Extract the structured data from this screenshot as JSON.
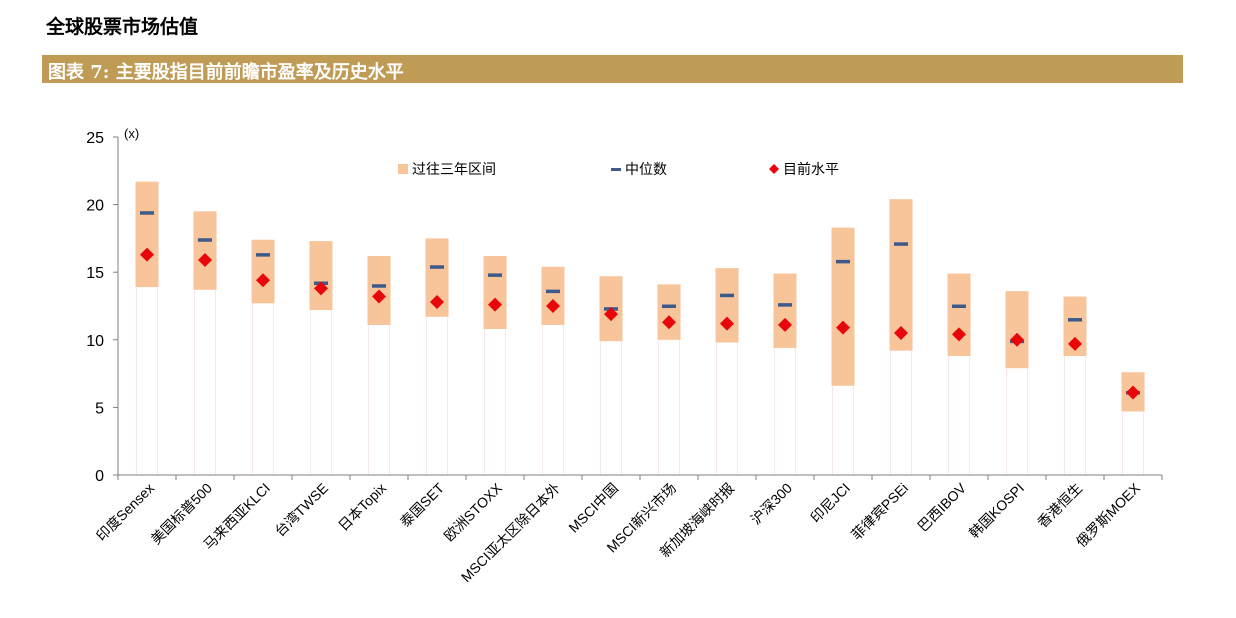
{
  "page": {
    "heading": "全球股票市场估值",
    "figure_title": "图表 7: 主要股指目前前瞻市盈率及历史水平"
  },
  "colors": {
    "band": "#f8c49a",
    "median": "#3c5a8a",
    "current": "#e8060a",
    "header_bar": "#bf9b56"
  },
  "chart_data": {
    "type": "bar",
    "title": "主要股指目前前瞻市盈率及历史水平",
    "unit_label": "(x)",
    "ylim": [
      0,
      25
    ],
    "yticks": [
      0,
      5,
      10,
      15,
      20,
      25
    ],
    "grid": false,
    "legend_position": "top-center",
    "legend": {
      "band": "过往三年区间",
      "median": "中位数",
      "current": "目前水平"
    },
    "categories": [
      "印度Sensex",
      "美国标普500",
      "马来西亚KLCI",
      "台湾TWSE",
      "日本Topix",
      "泰国SET",
      "欧洲STOXX",
      "MSCI亚太区除日本外",
      "MSCI中国",
      "MSCI新兴市场",
      "新加坡海峡时报",
      "沪深300",
      "印尼JCI",
      "菲律宾PSEi",
      "巴西IBOV",
      "韩国KOSPI",
      "香港恒生",
      "俄罗斯MOEX"
    ],
    "series": [
      {
        "name": "过往三年区间-低",
        "values": [
          13.9,
          13.7,
          12.7,
          12.2,
          11.1,
          11.7,
          10.8,
          11.1,
          9.9,
          10.0,
          9.8,
          9.4,
          6.6,
          9.2,
          8.8,
          7.9,
          8.8,
          4.7
        ]
      },
      {
        "name": "过往三年区间-高",
        "values": [
          21.7,
          19.5,
          17.4,
          17.3,
          16.2,
          17.5,
          16.2,
          15.4,
          14.7,
          14.1,
          15.3,
          14.9,
          18.3,
          20.4,
          14.9,
          13.6,
          13.2,
          7.6
        ]
      },
      {
        "name": "中位数",
        "values": [
          19.4,
          17.4,
          16.3,
          14.2,
          14.0,
          15.4,
          14.8,
          13.6,
          12.3,
          12.5,
          13.3,
          12.6,
          15.8,
          17.1,
          12.5,
          9.9,
          11.5,
          6.1
        ]
      },
      {
        "name": "目前水平",
        "values": [
          16.3,
          15.9,
          14.4,
          13.8,
          13.2,
          12.8,
          12.6,
          12.5,
          11.9,
          11.3,
          11.2,
          11.1,
          10.9,
          10.5,
          10.4,
          10.0,
          9.7,
          6.1
        ]
      }
    ]
  }
}
